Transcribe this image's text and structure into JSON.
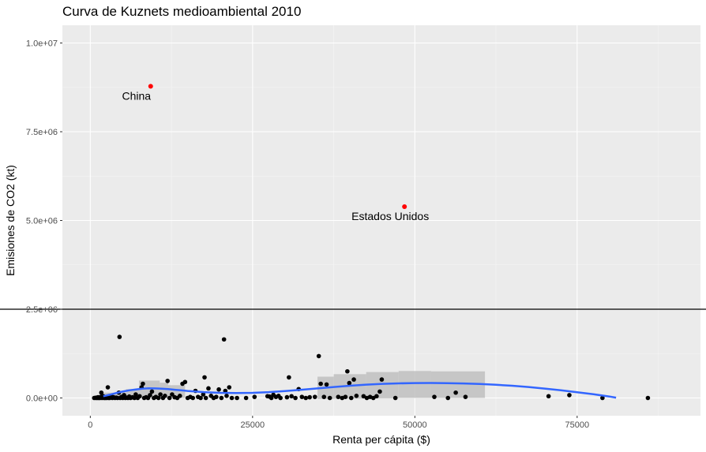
{
  "chart_data": {
    "type": "scatter",
    "title": "Curva de Kuznets medioambiental 2010",
    "xlabel": "Renta per cápita ($)",
    "ylabel": "Emisiones de CO2 (kt)",
    "xlim": [
      -4300,
      94000
    ],
    "ylim": [
      -500000,
      10500000
    ],
    "x_ticks": [
      0,
      25000,
      50000,
      75000
    ],
    "x_tick_labels": [
      "0",
      "25000",
      "50000",
      "75000"
    ],
    "y_ticks": [
      0,
      2500000,
      5000000,
      7500000,
      10000000
    ],
    "y_tick_labels": [
      "0.0e+00",
      "2.5e+06",
      "5.0e+06",
      "7.5e+06",
      "1.0e+07"
    ],
    "grid": true,
    "hline_y": 2500000,
    "colors": {
      "panel": "#ebebeb",
      "grid": "#ffffff",
      "points": "#000000",
      "highlight": "#ff0000",
      "smooth": "#3366ff",
      "ribbon": "#bfbfbf"
    },
    "highlighted": [
      {
        "label": "China",
        "x": 9300,
        "y": 8780000
      },
      {
        "label": "Estados Unidos",
        "x": 48400,
        "y": 5390000
      }
    ],
    "points": [
      [
        600,
        0
      ],
      [
        800,
        5000
      ],
      [
        900,
        0
      ],
      [
        1000,
        10000
      ],
      [
        1100,
        0
      ],
      [
        1200,
        20000
      ],
      [
        1300,
        0
      ],
      [
        1400,
        5000
      ],
      [
        1500,
        0
      ],
      [
        1600,
        30000
      ],
      [
        1700,
        150000
      ],
      [
        1800,
        0
      ],
      [
        1900,
        10000
      ],
      [
        2000,
        50000
      ],
      [
        2100,
        0
      ],
      [
        2200,
        5000
      ],
      [
        2300,
        0
      ],
      [
        2400,
        20000
      ],
      [
        2500,
        0
      ],
      [
        2600,
        10000
      ],
      [
        2700,
        300000
      ],
      [
        2800,
        0
      ],
      [
        2900,
        40000
      ],
      [
        3000,
        0
      ],
      [
        3200,
        60000
      ],
      [
        3400,
        0
      ],
      [
        3600,
        20000
      ],
      [
        3800,
        0
      ],
      [
        4000,
        10000
      ],
      [
        4200,
        0
      ],
      [
        4400,
        150000
      ],
      [
        4500,
        1720000
      ],
      [
        4600,
        0
      ],
      [
        4800,
        30000
      ],
      [
        5000,
        0
      ],
      [
        5200,
        80000
      ],
      [
        5400,
        0
      ],
      [
        5600,
        10000
      ],
      [
        5800,
        0
      ],
      [
        6000,
        40000
      ],
      [
        6200,
        0
      ],
      [
        6500,
        20000
      ],
      [
        6800,
        0
      ],
      [
        7000,
        100000
      ],
      [
        7300,
        0
      ],
      [
        7600,
        50000
      ],
      [
        7900,
        300000
      ],
      [
        8100,
        400000
      ],
      [
        8300,
        0
      ],
      [
        8600,
        20000
      ],
      [
        8900,
        0
      ],
      [
        9200,
        80000
      ],
      [
        9500,
        180000
      ],
      [
        9800,
        0
      ],
      [
        10100,
        30000
      ],
      [
        10500,
        0
      ],
      [
        10800,
        100000
      ],
      [
        11200,
        0
      ],
      [
        11500,
        60000
      ],
      [
        11900,
        480000
      ],
      [
        12200,
        0
      ],
      [
        12600,
        100000
      ],
      [
        13000,
        20000
      ],
      [
        13400,
        0
      ],
      [
        13800,
        60000
      ],
      [
        14200,
        400000
      ],
      [
        14600,
        450000
      ],
      [
        15000,
        0
      ],
      [
        15400,
        30000
      ],
      [
        15800,
        0
      ],
      [
        16200,
        200000
      ],
      [
        16600,
        30000
      ],
      [
        17000,
        0
      ],
      [
        17400,
        100000
      ],
      [
        17800,
        0
      ],
      [
        17600,
        580000
      ],
      [
        18200,
        270000
      ],
      [
        18600,
        60000
      ],
      [
        19000,
        0
      ],
      [
        19400,
        30000
      ],
      [
        19800,
        240000
      ],
      [
        20200,
        0
      ],
      [
        20600,
        1650000
      ],
      [
        20800,
        200000
      ],
      [
        21000,
        60000
      ],
      [
        21400,
        300000
      ],
      [
        21800,
        0
      ],
      [
        22600,
        0
      ],
      [
        24000,
        0
      ],
      [
        25300,
        30000
      ],
      [
        27300,
        50000
      ],
      [
        27600,
        40000
      ],
      [
        27900,
        0
      ],
      [
        28200,
        90000
      ],
      [
        28600,
        30000
      ],
      [
        29000,
        60000
      ],
      [
        29300,
        0
      ],
      [
        30300,
        20000
      ],
      [
        30600,
        580000
      ],
      [
        31000,
        50000
      ],
      [
        31600,
        0
      ],
      [
        32100,
        250000
      ],
      [
        32600,
        30000
      ],
      [
        33200,
        0
      ],
      [
        33800,
        20000
      ],
      [
        34600,
        30000
      ],
      [
        35200,
        1180000
      ],
      [
        35500,
        400000
      ],
      [
        36000,
        30000
      ],
      [
        36400,
        380000
      ],
      [
        36900,
        0
      ],
      [
        38200,
        30000
      ],
      [
        38800,
        0
      ],
      [
        39300,
        30000
      ],
      [
        39600,
        750000
      ],
      [
        39900,
        420000
      ],
      [
        40200,
        0
      ],
      [
        40600,
        520000
      ],
      [
        41000,
        60000
      ],
      [
        42100,
        50000
      ],
      [
        42600,
        0
      ],
      [
        43100,
        30000
      ],
      [
        43600,
        0
      ],
      [
        44100,
        50000
      ],
      [
        44600,
        180000
      ],
      [
        44900,
        520000
      ],
      [
        47000,
        0
      ],
      [
        53000,
        30000
      ],
      [
        55100,
        0
      ],
      [
        56300,
        150000
      ],
      [
        57800,
        30000
      ],
      [
        70600,
        50000
      ],
      [
        73800,
        80000
      ],
      [
        78900,
        0
      ],
      [
        85900,
        0
      ]
    ],
    "smooth_x": [
      2000,
      3000,
      4000,
      5000,
      6000,
      7000,
      8000,
      9000,
      10000,
      11000,
      12000,
      13000,
      14000,
      15000,
      17500,
      20000,
      22500,
      25000,
      27500,
      30000,
      32500,
      35000,
      37500,
      40000,
      42500,
      45000,
      47500,
      50000,
      52500,
      55000,
      57500,
      60000,
      62500,
      65000,
      67500,
      70000,
      72500,
      75000,
      77500,
      80000,
      81000
    ],
    "smooth_y": [
      50000,
      90000,
      140000,
      180000,
      215000,
      240000,
      262000,
      272000,
      270000,
      262000,
      248000,
      232000,
      215000,
      198000,
      165000,
      145000,
      140000,
      145000,
      165000,
      195000,
      230000,
      270000,
      310000,
      345000,
      375000,
      398000,
      412000,
      420000,
      422000,
      418000,
      410000,
      395000,
      372000,
      345000,
      310000,
      265000,
      215000,
      160000,
      105000,
      40000,
      10000
    ],
    "ribbon_segments": [
      {
        "x0": 2000,
        "x1": 5500,
        "lo": -50000,
        "hi": 150000
      },
      {
        "x0": 5500,
        "x1": 7500,
        "lo": -50000,
        "hi": 250000
      },
      {
        "x0": 7500,
        "x1": 10700,
        "lo": 0,
        "hi": 490000
      },
      {
        "x0": 10700,
        "x1": 12000,
        "lo": 0,
        "hi": 430000
      },
      {
        "x0": 12000,
        "x1": 14600,
        "lo": 0,
        "hi": 360000
      },
      {
        "x0": 35000,
        "x1": 37500,
        "lo": -30000,
        "hi": 600000
      },
      {
        "x0": 37500,
        "x1": 42500,
        "lo": -20000,
        "hi": 670000
      },
      {
        "x0": 42500,
        "x1": 47500,
        "lo": -10000,
        "hi": 730000
      },
      {
        "x0": 47500,
        "x1": 52500,
        "lo": 0,
        "hi": 760000
      },
      {
        "x0": 52500,
        "x1": 60800,
        "lo": 0,
        "hi": 750000
      }
    ]
  }
}
